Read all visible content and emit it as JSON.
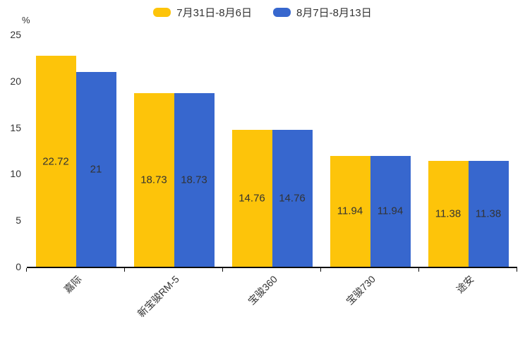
{
  "colors": {
    "series1": "#FDC40A",
    "series2": "#3767CE",
    "axis": "#0d0d0d",
    "text": "#333333",
    "background": "#ffffff"
  },
  "chart_data": {
    "type": "bar",
    "title": "",
    "categories": [
      "嘉际",
      "新宝骏RM-5",
      "宝骏360",
      "宝骏730",
      "途安"
    ],
    "series": [
      {
        "name": "7月31日-8月6日",
        "color": "#FDC40A",
        "values": [
          22.72,
          18.73,
          14.76,
          11.94,
          11.38
        ]
      },
      {
        "name": "8月7日-8月13日",
        "color": "#3767CE",
        "values": [
          21,
          18.73,
          14.76,
          11.94,
          11.38
        ]
      }
    ],
    "xlabel": "",
    "ylabel": "%",
    "yticks": [
      0,
      5,
      10,
      15,
      20,
      25
    ],
    "ylim": [
      0,
      25
    ],
    "grid": false,
    "legend_position": "top",
    "xtick_rotation_deg": -45,
    "value_labels_inside_bars": true
  }
}
